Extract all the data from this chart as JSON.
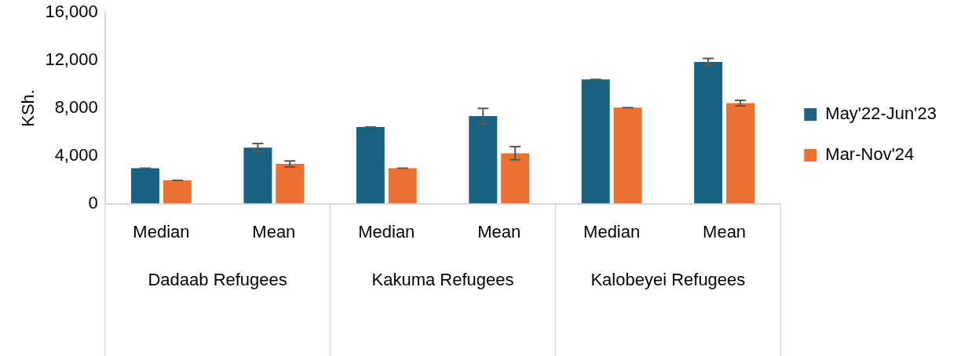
{
  "chart_data": {
    "type": "bar",
    "ylabel": "KSh.",
    "categories": [
      "Median",
      "Mean",
      "Median",
      "Mean",
      "Median",
      "Mean"
    ],
    "annotations": [
      "Dadaab Refugees",
      "Kakuma Refugees",
      "Kalobeyei Refugees"
    ],
    "series": [
      {
        "name": "May'22-Jun'23",
        "color": "#1a6282",
        "values": [
          2970,
          4690,
          6410,
          7330,
          10410,
          11880
        ],
        "errors": [
          0,
          340,
          0,
          640,
          0,
          290
        ]
      },
      {
        "name": "Mar-Nov'24",
        "color": "#eb7031",
        "values": [
          1950,
          3320,
          2970,
          4220,
          8050,
          8420
        ],
        "errors": [
          0,
          260,
          0,
          550,
          0,
          230
        ]
      }
    ],
    "ylim": [
      0,
      16000
    ],
    "yticks": [
      {
        "value": 0,
        "label": "0"
      },
      {
        "value": 4000,
        "label": "4,000"
      },
      {
        "value": 8000,
        "label": "8,000"
      },
      {
        "value": 12000,
        "label": "12,000"
      },
      {
        "value": 16000,
        "label": "16,000"
      }
    ],
    "grid": false,
    "legend": "right"
  }
}
